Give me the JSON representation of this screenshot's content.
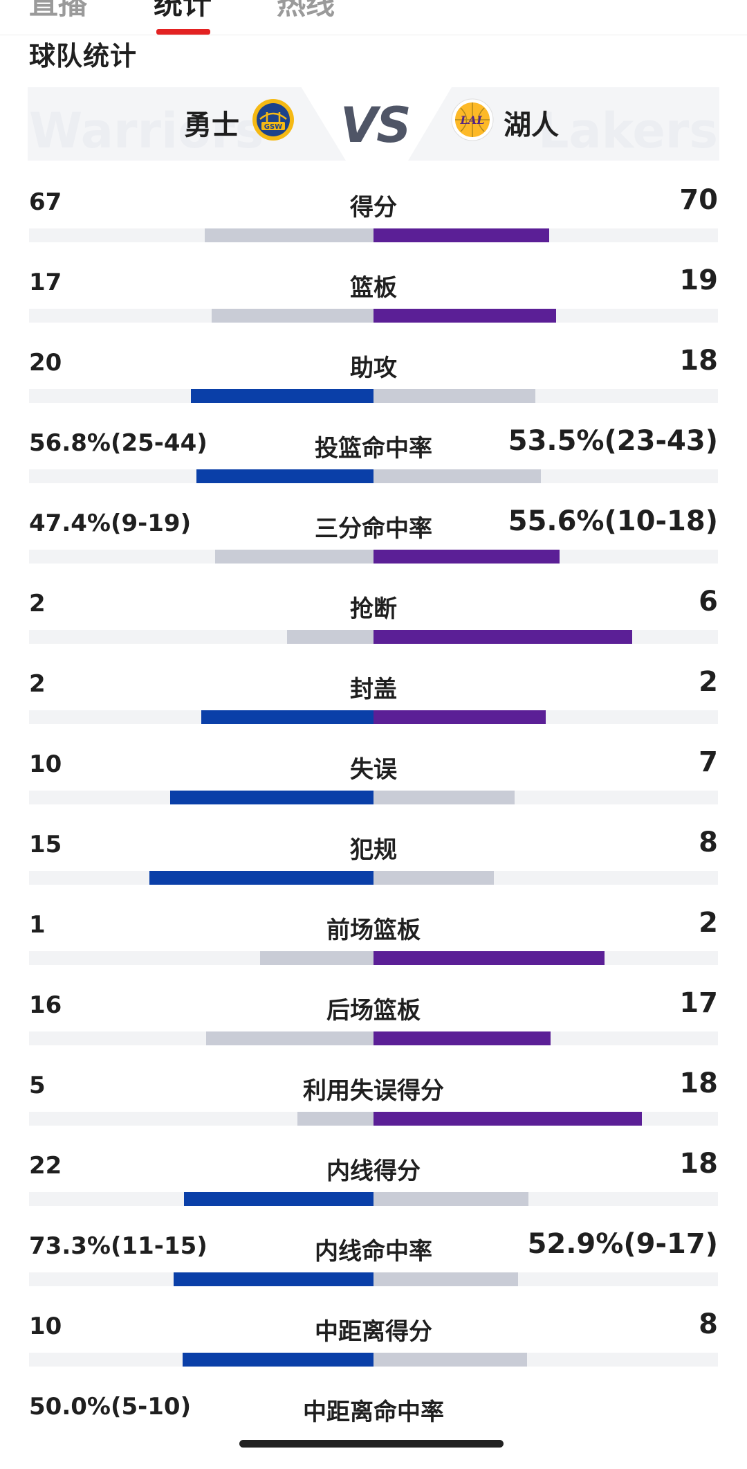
{
  "tabs": [
    {
      "label": "直播",
      "active": false
    },
    {
      "label": "统计",
      "active": true
    },
    {
      "label": "热线",
      "active": false
    }
  ],
  "section_title": "球队统计",
  "home_team": {
    "name": "勇士",
    "bg_word": "Warriors",
    "logo_text": "GSW",
    "color": "#003da5"
  },
  "away_team": {
    "name": "湖人",
    "bg_word": "Lakers",
    "logo_text": "LAL",
    "color": "#5b1f96"
  },
  "vs_text": "VS",
  "colors": {
    "home_bar": "#0a3fa8",
    "away_bar": "#5b1f96",
    "neutral_bar": "#c9ccd6",
    "track": "#f2f3f5"
  },
  "stats": [
    {
      "label": "得分",
      "home": "67",
      "away": "70",
      "home_share": 0.49,
      "away_share": 0.51,
      "leader": "away"
    },
    {
      "label": "篮板",
      "home": "17",
      "away": "19",
      "home_share": 0.47,
      "away_share": 0.53,
      "leader": "away"
    },
    {
      "label": "助攻",
      "home": "20",
      "away": "18",
      "home_share": 0.53,
      "away_share": 0.47,
      "leader": "home"
    },
    {
      "label": "投篮命中率",
      "home": "56.8%(25-44)",
      "away": "53.5%(23-43)",
      "home_share": 0.515,
      "away_share": 0.485,
      "leader": "home"
    },
    {
      "label": "三分命中率",
      "home": "47.4%(9-19)",
      "away": "55.6%(10-18)",
      "home_share": 0.46,
      "away_share": 0.54,
      "leader": "away"
    },
    {
      "label": "抢断",
      "home": "2",
      "away": "6",
      "home_share": 0.25,
      "away_share": 0.75,
      "leader": "away"
    },
    {
      "label": "封盖",
      "home": "2",
      "away": "2",
      "home_share": 0.5,
      "away_share": 0.5,
      "leader": "tie"
    },
    {
      "label": "失误",
      "home": "10",
      "away": "7",
      "home_share": 0.59,
      "away_share": 0.41,
      "leader": "home"
    },
    {
      "label": "犯规",
      "home": "15",
      "away": "8",
      "home_share": 0.65,
      "away_share": 0.35,
      "leader": "home"
    },
    {
      "label": "前场篮板",
      "home": "1",
      "away": "2",
      "home_share": 0.33,
      "away_share": 0.67,
      "leader": "away"
    },
    {
      "label": "后场篮板",
      "home": "16",
      "away": "17",
      "home_share": 0.485,
      "away_share": 0.515,
      "leader": "away"
    },
    {
      "label": "利用失误得分",
      "home": "5",
      "away": "18",
      "home_share": 0.22,
      "away_share": 0.78,
      "leader": "away"
    },
    {
      "label": "内线得分",
      "home": "22",
      "away": "18",
      "home_share": 0.55,
      "away_share": 0.45,
      "leader": "home"
    },
    {
      "label": "内线命中率",
      "home": "73.3%(11-15)",
      "away": "52.9%(9-17)",
      "home_share": 0.58,
      "away_share": 0.42,
      "leader": "home"
    },
    {
      "label": "中距离得分",
      "home": "10",
      "away": "8",
      "home_share": 0.555,
      "away_share": 0.445,
      "leader": "home"
    },
    {
      "label": "中距离命中率",
      "home": "50.0%(5-10)",
      "away": "",
      "home_share": null,
      "away_share": null,
      "leader": "none"
    }
  ]
}
